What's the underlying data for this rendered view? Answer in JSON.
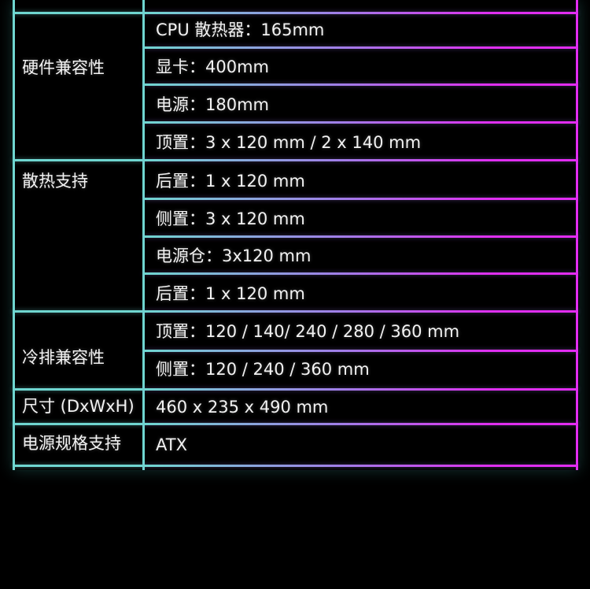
{
  "colors": {
    "line_start": "#6fd6d0",
    "line_end": "#e22cf2",
    "text": "#f2f2f2",
    "background": "#000000"
  },
  "groups": [
    {
      "label": "硬件兼容性",
      "values": [
        "CPU 散热器：165mm",
        "显卡：400mm",
        "电源：180mm",
        "顶置：3 x 120 mm / 2 x 140 mm"
      ]
    },
    {
      "label": "散热支持",
      "values": [
        "后置：1 x 120 mm",
        "侧置：3 x 120 mm",
        "电源仓：3x120 mm",
        "后置：1 x 120 mm"
      ]
    },
    {
      "label": "冷排兼容性",
      "values": [
        "顶置：120 / 140/ 240 / 280 / 360 mm",
        "侧置：120 / 240 / 360 mm"
      ]
    },
    {
      "label": "尺寸 (DxWxH)",
      "values": [
        "460 x 235 x 490 mm"
      ]
    },
    {
      "label": "电源规格支持",
      "values": [
        "ATX"
      ]
    }
  ]
}
